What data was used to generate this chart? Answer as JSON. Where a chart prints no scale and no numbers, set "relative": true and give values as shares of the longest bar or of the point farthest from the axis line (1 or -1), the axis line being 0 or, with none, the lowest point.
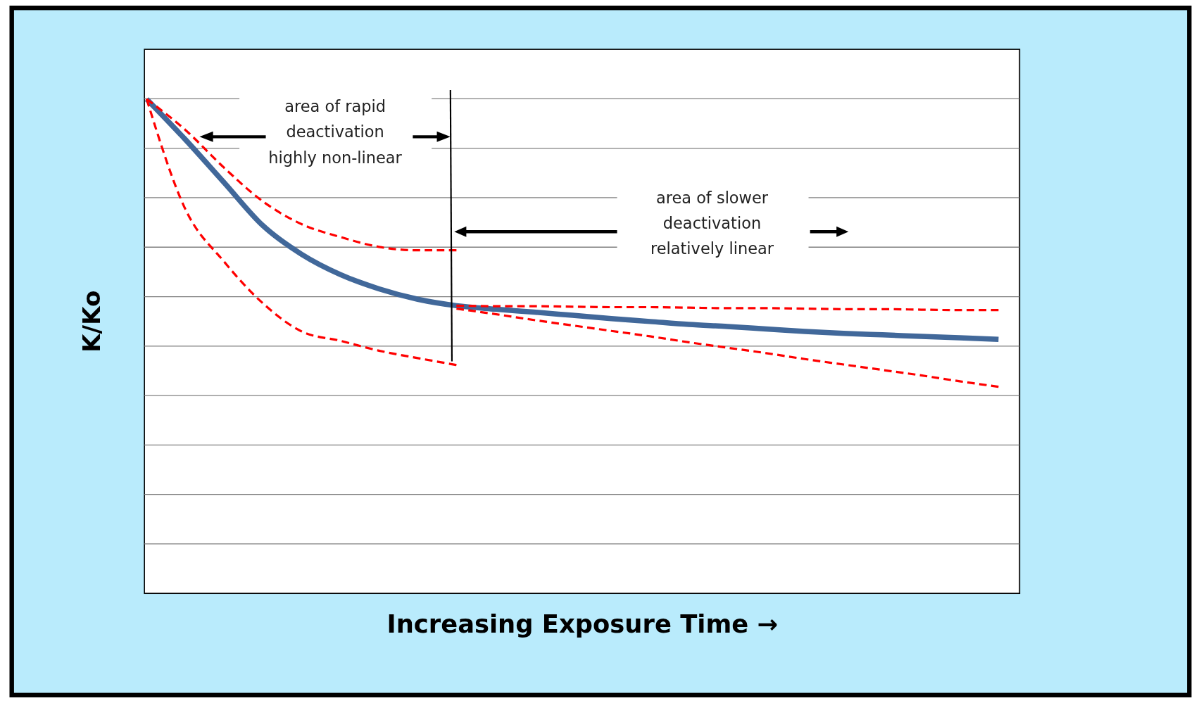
{
  "chart_data": {
    "type": "line",
    "relative": true,
    "xlabel": "Increasing Exposure Time →",
    "ylabel": "K/Ko",
    "grid": true,
    "categories": [
      null,
      null,
      null,
      null,
      null,
      null,
      null,
      null,
      null,
      null,
      null,
      null,
      null,
      null,
      null,
      null,
      null,
      null,
      null,
      null,
      null,
      null,
      null
    ],
    "series": [
      {
        "color": "#41689a",
        "line_style": "solid",
        "values": [
          1.0,
          0.918,
          0.831,
          0.744,
          0.686,
          0.645,
          0.616,
          0.595,
          0.582,
          0.575,
          0.569,
          0.5625,
          0.556,
          0.55,
          0.544,
          0.54,
          0.535,
          0.53,
          0.526,
          0.523,
          0.52,
          0.517,
          0.514
        ]
      },
      {
        "color": "#ff0000",
        "line_style": "dashed",
        "values": [
          1.0,
          0.9375,
          0.861,
          0.793,
          0.747,
          0.721,
          0.701,
          0.694,
          0.694,
          null,
          null,
          null,
          null,
          null,
          null,
          null,
          null,
          null,
          null,
          null,
          null,
          null,
          null
        ]
      },
      {
        "color": "#ff0000",
        "line_style": "dashed",
        "values": [
          1.0,
          0.777,
          0.671,
          0.587,
          0.53,
          0.511,
          0.491,
          0.476,
          0.462,
          null,
          null,
          null,
          null,
          null,
          null,
          null,
          null,
          null,
          null,
          null,
          null,
          null,
          null
        ]
      },
      {
        "color": "#ff0000",
        "line_style": "dashed",
        "values": [
          null,
          null,
          null,
          null,
          null,
          null,
          null,
          null,
          0.582,
          0.581,
          0.581,
          0.58,
          0.579,
          0.579,
          0.578,
          0.577,
          0.577,
          0.576,
          0.575,
          0.575,
          0.574,
          0.573,
          0.573
        ]
      },
      {
        "color": "#ff0000",
        "line_style": "dashed",
        "values": [
          null,
          null,
          null,
          null,
          null,
          null,
          null,
          null,
          0.576,
          0.565,
          0.553,
          0.542,
          0.531,
          0.52,
          0.508,
          0.497,
          0.486,
          0.474,
          0.463,
          0.452,
          0.441,
          0.429,
          0.418
        ]
      }
    ],
    "annotations": [
      "area of rapid\ndeactivation\nhighly non-linear",
      "area of slower\ndeactivation\nrelatively linear"
    ]
  }
}
